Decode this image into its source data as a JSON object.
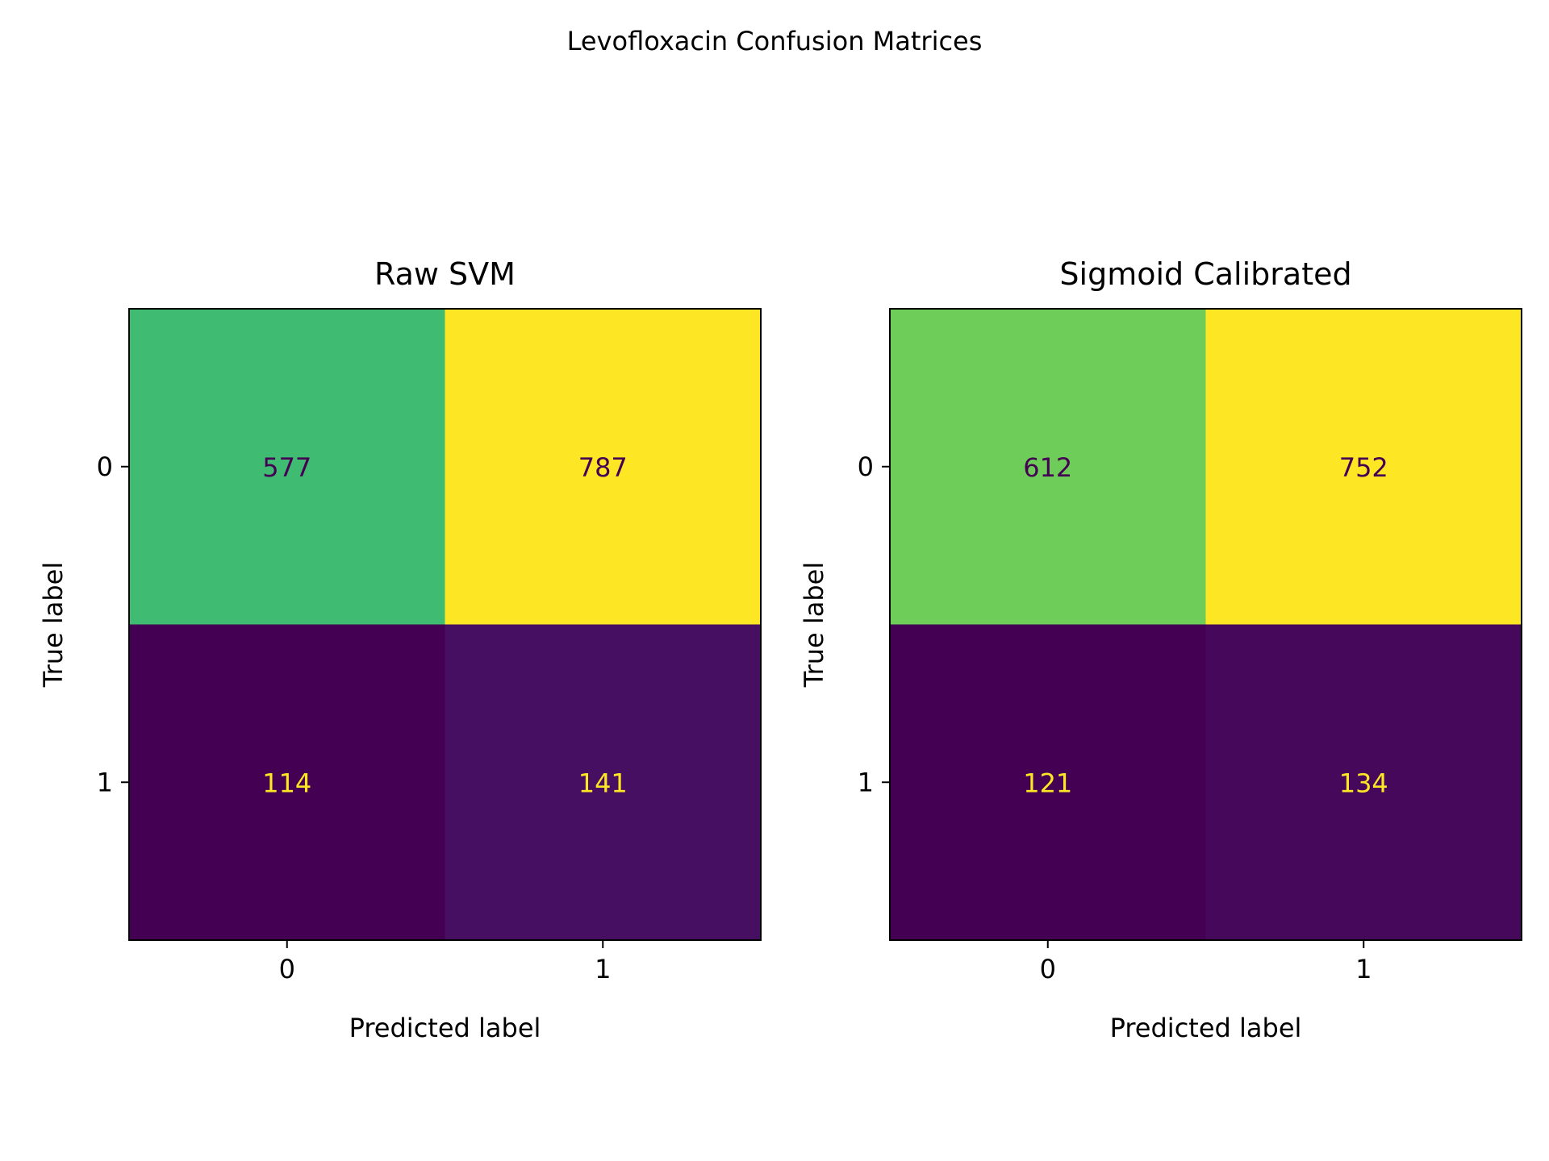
{
  "figure": {
    "title": "Levofloxacin Confusion Matrices"
  },
  "chart_data": [
    {
      "type": "heatmap",
      "title": "Raw SVM",
      "xlabel": "Predicted label",
      "ylabel": "True label",
      "x_categories": [
        "0",
        "1"
      ],
      "y_categories": [
        "0",
        "1"
      ],
      "values": [
        [
          577,
          787
        ],
        [
          114,
          141
        ]
      ],
      "colormap": "viridis",
      "colorbar": false,
      "grid": false
    },
    {
      "type": "heatmap",
      "title": "Sigmoid Calibrated",
      "xlabel": "Predicted label",
      "ylabel": "True label",
      "x_categories": [
        "0",
        "1"
      ],
      "y_categories": [
        "0",
        "1"
      ],
      "values": [
        [
          612,
          752
        ],
        [
          121,
          134
        ]
      ],
      "colormap": "viridis",
      "colorbar": false,
      "grid": false
    }
  ],
  "colors": {
    "text_on_dark": "#fde725",
    "text_on_light": "#440154",
    "axis": "#000000"
  }
}
